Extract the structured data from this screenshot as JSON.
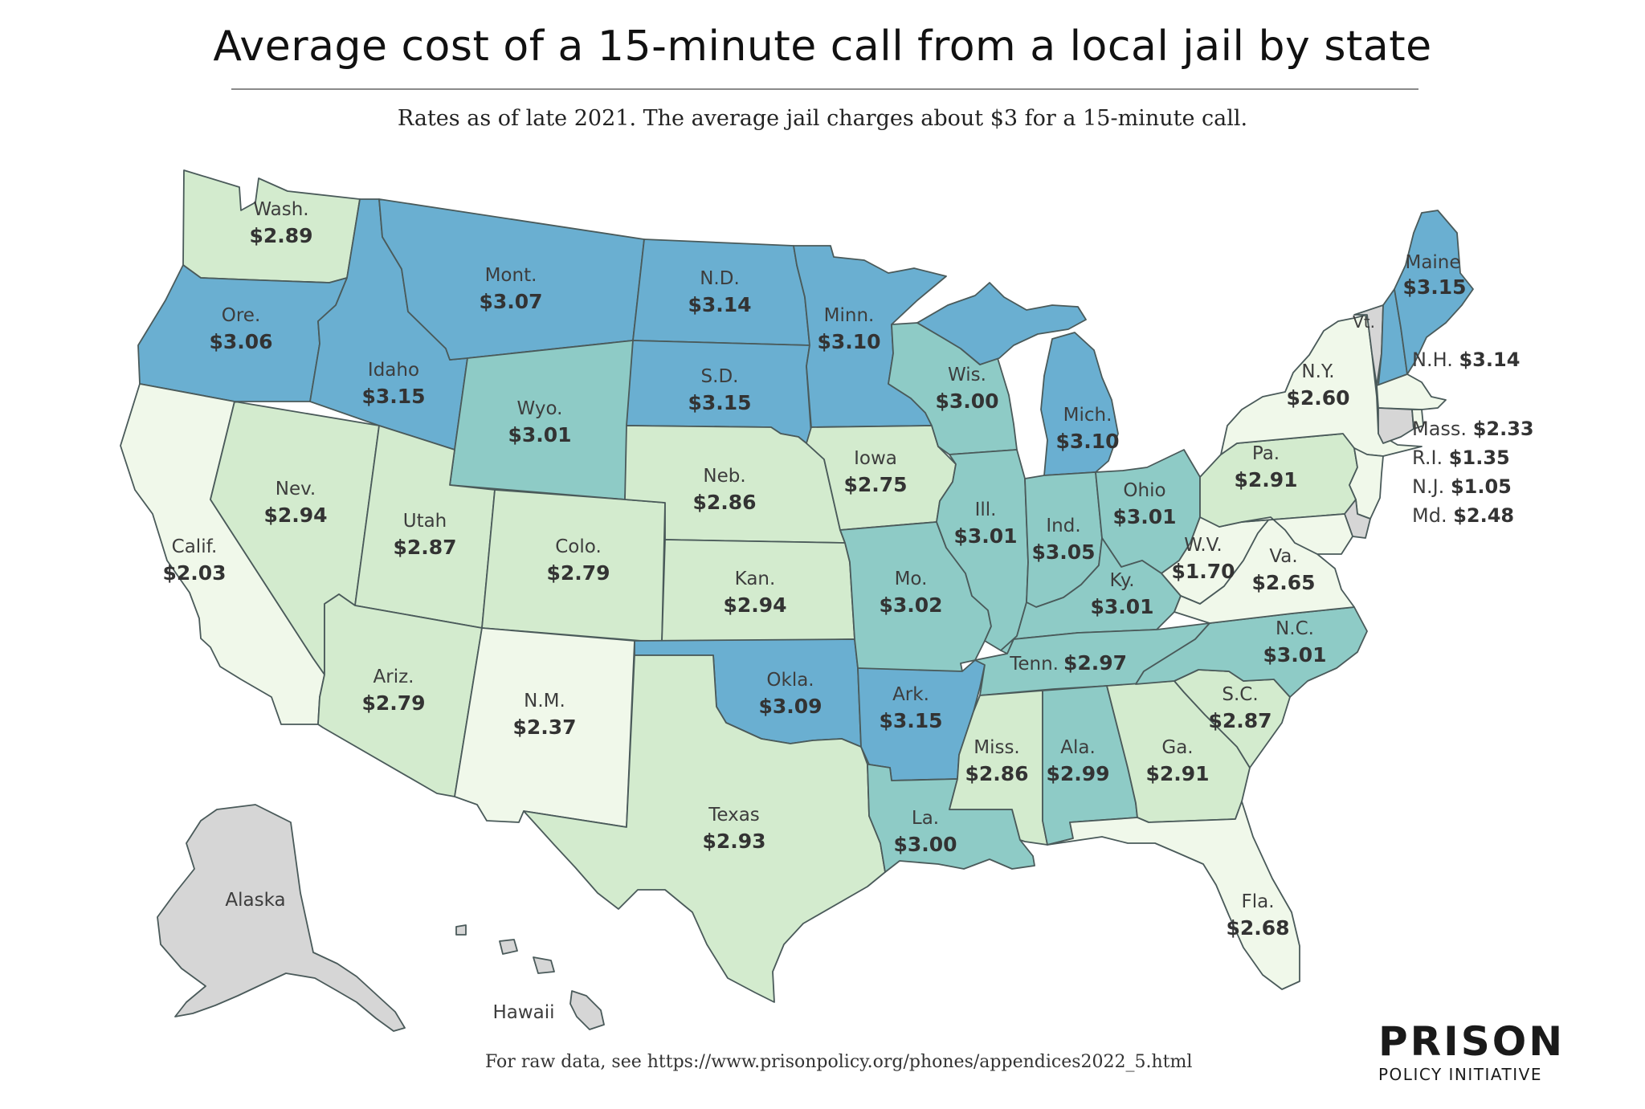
{
  "title": "Average cost of a 15-minute call from a local jail by state",
  "subtitle": "Rates as of late 2021. The average jail charges about $3 for a 15-minute call.",
  "source": "For raw data, see https://www.prisonpolicy.org/phones/appendices2022_5.html",
  "logo": {
    "main": "PRISON",
    "sub": "POLICY INITIATIVE"
  },
  "colors": {
    "highest": "#6aafd1",
    "high": "#8ecbc6",
    "mid": "#d3ebce",
    "low": "#f0f8ea",
    "no_data": "#d6d6d6",
    "border": "#4a5a5a"
  },
  "states": {
    "wa": {
      "name": "Wash.",
      "value": "$2.89"
    },
    "or": {
      "name": "Ore.",
      "value": "$3.06"
    },
    "ca": {
      "name": "Calif.",
      "value": "$2.03"
    },
    "nv": {
      "name": "Nev.",
      "value": "$2.94"
    },
    "id": {
      "name": "Idaho",
      "value": "$3.15"
    },
    "mt": {
      "name": "Mont.",
      "value": "$3.07"
    },
    "wy": {
      "name": "Wyo.",
      "value": "$3.01"
    },
    "ut": {
      "name": "Utah",
      "value": "$2.87"
    },
    "az": {
      "name": "Ariz.",
      "value": "$2.79"
    },
    "co": {
      "name": "Colo.",
      "value": "$2.79"
    },
    "nm": {
      "name": "N.M.",
      "value": "$2.37"
    },
    "nd": {
      "name": "N.D.",
      "value": "$3.14"
    },
    "sd": {
      "name": "S.D.",
      "value": "$3.15"
    },
    "ne": {
      "name": "Neb.",
      "value": "$2.86"
    },
    "ks": {
      "name": "Kan.",
      "value": "$2.94"
    },
    "ok": {
      "name": "Okla.",
      "value": "$3.09"
    },
    "tx": {
      "name": "Texas",
      "value": "$2.93"
    },
    "mn": {
      "name": "Minn.",
      "value": "$3.10"
    },
    "ia": {
      "name": "Iowa",
      "value": "$2.75"
    },
    "mo": {
      "name": "Mo.",
      "value": "$3.02"
    },
    "ar": {
      "name": "Ark.",
      "value": "$3.15"
    },
    "la": {
      "name": "La.",
      "value": "$3.00"
    },
    "wi": {
      "name": "Wis.",
      "value": "$3.00"
    },
    "il": {
      "name": "Ill.",
      "value": "$3.01"
    },
    "mi": {
      "name": "Mich.",
      "value": "$3.10"
    },
    "in": {
      "name": "Ind.",
      "value": "$3.05"
    },
    "oh": {
      "name": "Ohio",
      "value": "$3.01"
    },
    "ky": {
      "name": "Ky.",
      "value": "$3.01"
    },
    "tn": {
      "name": "Tenn.",
      "value": "$2.97"
    },
    "ms": {
      "name": "Miss.",
      "value": "$2.86"
    },
    "al": {
      "name": "Ala.",
      "value": "$2.99"
    },
    "ga": {
      "name": "Ga.",
      "value": "$2.91"
    },
    "fl": {
      "name": "Fla.",
      "value": "$2.68"
    },
    "sc": {
      "name": "S.C.",
      "value": "$2.87"
    },
    "nc": {
      "name": "N.C.",
      "value": "$3.01"
    },
    "va": {
      "name": "Va.",
      "value": "$2.65"
    },
    "wv": {
      "name": "W.V.",
      "value": "$1.70"
    },
    "pa": {
      "name": "Pa.",
      "value": "$2.91"
    },
    "ny": {
      "name": "N.Y.",
      "value": "$2.60"
    },
    "vt": {
      "name": "Vt."
    },
    "me": {
      "name": "Maine",
      "value": "$3.15"
    },
    "nh": {
      "name": "N.H.",
      "value": "$3.14"
    },
    "ma": {
      "name": "Mass.",
      "value": "$2.33"
    },
    "ri": {
      "name": "R.I.",
      "value": "$1.35"
    },
    "nj": {
      "name": "N.J.",
      "value": "$1.05"
    },
    "md": {
      "name": "Md.",
      "value": "$2.48"
    },
    "ak": {
      "name": "Alaska"
    },
    "hi": {
      "name": "Hawaii"
    }
  }
}
